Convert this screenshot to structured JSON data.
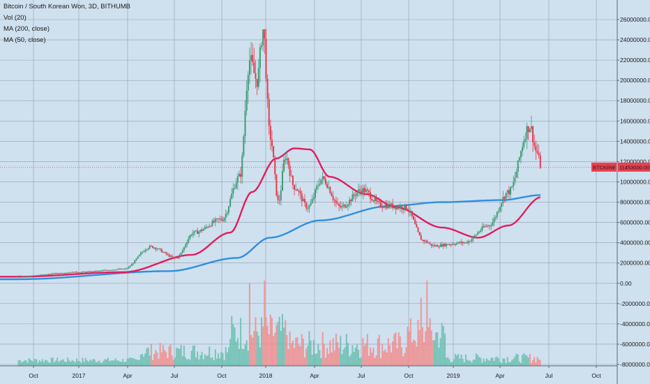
{
  "header": {
    "title": "Bitcoin / South Korean Won, 3D, BITHUMB",
    "vol_label": "Vol (20)",
    "ma200_label": "MA (200, close)",
    "ma50_label": "MA (50, close)"
  },
  "price_tag": {
    "symbol": "BTCKRW",
    "value": "11453000.00"
  },
  "colors": {
    "background": "#cfe0ef",
    "grid": "#7f8a97",
    "candle_up": "#3f9a78",
    "candle_down": "#e23c4c",
    "ma50": "#e21d5c",
    "ma200": "#2f8ee0",
    "vol_up": "#6cc0b0",
    "vol_down": "#ef8f8f",
    "price_tag": "#e8414f"
  },
  "chart_data": {
    "type": "candlestick",
    "title": "Bitcoin / South Korean Won, 3D, BITHUMB",
    "y_axis": {
      "side": "right",
      "range": [
        -8000000,
        26000000
      ],
      "ticks": [
        "26000000.00",
        "24000000.00",
        "22000000.00",
        "20000000.00",
        "18000000.00",
        "16000000.00",
        "14000000.00",
        "12000000.00",
        "10000000.00",
        "8000000.00",
        "6000000.00",
        "4000000.00",
        "2000000.00",
        "0.00",
        "-2000000.00",
        "-4000000.00",
        "-6000000.00",
        "-8000000.00"
      ]
    },
    "x_axis": {
      "ticks": [
        "Oct",
        "2017",
        "Apr",
        "Jul",
        "Oct",
        "2018",
        "Apr",
        "Jul",
        "Oct",
        "2019",
        "Apr",
        "Jul",
        "Oct"
      ]
    },
    "last_price": 11453000,
    "price_anchors": [
      {
        "date": "2016-09-01",
        "close": 700000
      },
      {
        "date": "2017-01-01",
        "close": 1100000
      },
      {
        "date": "2017-04-01",
        "close": 1400000
      },
      {
        "date": "2017-05-25",
        "close": 3600000
      },
      {
        "date": "2017-07-15",
        "close": 2500000
      },
      {
        "date": "2017-08-20",
        "close": 5000000
      },
      {
        "date": "2017-10-15",
        "close": 6300000
      },
      {
        "date": "2017-11-20",
        "close": 10500000
      },
      {
        "date": "2017-12-10",
        "close": 22000000
      },
      {
        "date": "2017-12-25",
        "close": 20000000
      },
      {
        "date": "2018-01-06",
        "close": 25000000
      },
      {
        "date": "2018-01-20",
        "close": 14500000
      },
      {
        "date": "2018-02-06",
        "close": 8000000
      },
      {
        "date": "2018-02-20",
        "close": 12500000
      },
      {
        "date": "2018-03-10",
        "close": 9500000
      },
      {
        "date": "2018-04-06",
        "close": 7500000
      },
      {
        "date": "2018-05-05",
        "close": 10300000
      },
      {
        "date": "2018-06-10",
        "close": 7500000
      },
      {
        "date": "2018-07-25",
        "close": 9200000
      },
      {
        "date": "2018-09-01",
        "close": 7700000
      },
      {
        "date": "2018-10-20",
        "close": 7500000
      },
      {
        "date": "2018-11-25",
        "close": 4200000
      },
      {
        "date": "2018-12-15",
        "close": 3700000
      },
      {
        "date": "2019-02-15",
        "close": 4000000
      },
      {
        "date": "2019-04-05",
        "close": 5700000
      },
      {
        "date": "2019-05-15",
        "close": 9000000
      },
      {
        "date": "2019-06-27",
        "close": 15500000
      },
      {
        "date": "2019-07-10",
        "close": 13000000
      },
      {
        "date": "2019-07-20",
        "close": 11453000
      }
    ],
    "ma50_anchors": [
      {
        "date": "2016-09-01",
        "value": 650000
      },
      {
        "date": "2017-04-01",
        "value": 1100000
      },
      {
        "date": "2017-08-15",
        "value": 2800000
      },
      {
        "date": "2017-11-01",
        "value": 5000000
      },
      {
        "date": "2017-12-15",
        "value": 9000000
      },
      {
        "date": "2018-02-01",
        "value": 12300000
      },
      {
        "date": "2018-03-10",
        "value": 13300000
      },
      {
        "date": "2018-04-10",
        "value": 13200000
      },
      {
        "date": "2018-05-20",
        "value": 10500000
      },
      {
        "date": "2018-08-01",
        "value": 8800000
      },
      {
        "date": "2018-10-01",
        "value": 7500000
      },
      {
        "date": "2019-01-01",
        "value": 5500000
      },
      {
        "date": "2019-03-15",
        "value": 4500000
      },
      {
        "date": "2019-05-15",
        "value": 5700000
      },
      {
        "date": "2019-07-20",
        "value": 8500000
      }
    ],
    "ma200_anchors": [
      {
        "date": "2016-09-01",
        "value": 400000
      },
      {
        "date": "2017-07-01",
        "value": 1200000
      },
      {
        "date": "2017-11-15",
        "value": 2500000
      },
      {
        "date": "2018-01-20",
        "value": 4500000
      },
      {
        "date": "2018-05-01",
        "value": 6200000
      },
      {
        "date": "2018-09-15",
        "value": 7600000
      },
      {
        "date": "2019-01-01",
        "value": 8000000
      },
      {
        "date": "2019-05-01",
        "value": 8200000
      },
      {
        "date": "2019-07-20",
        "value": 8700000
      }
    ],
    "volume_spikes": [
      {
        "date": "2017-12-10",
        "level": 0.97
      },
      {
        "date": "2018-01-08",
        "level": 1.0
      },
      {
        "date": "2018-11-20",
        "level": 0.8
      },
      {
        "date": "2018-12-01",
        "level": 1.0
      }
    ]
  }
}
